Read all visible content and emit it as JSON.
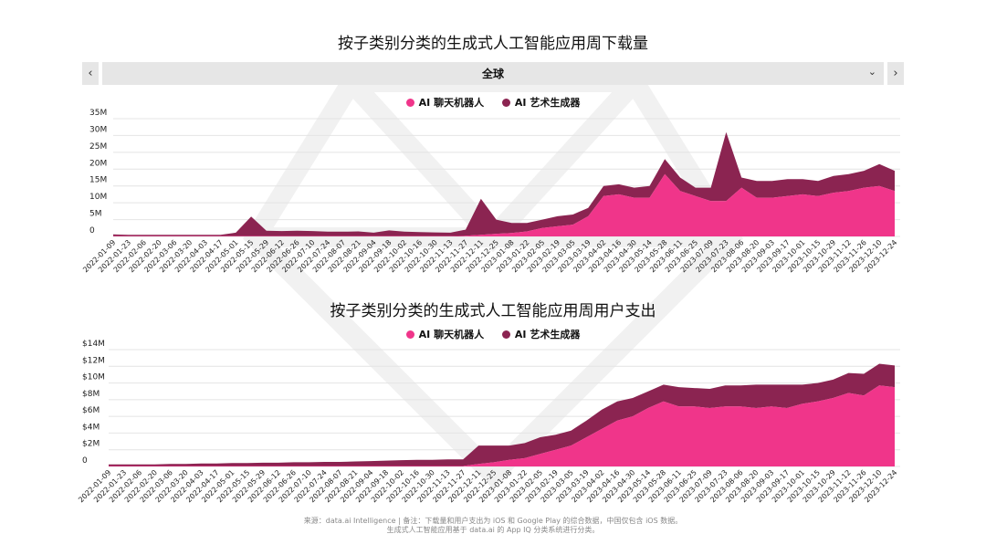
{
  "region": {
    "label": "全球",
    "prev_icon": "‹",
    "next_icon": "›",
    "dropdown_icon": "⌄"
  },
  "colors": {
    "chatbot": "#f0358a",
    "art": "#8b2451"
  },
  "source": {
    "line1": "来源：data.ai Intelligence | 备注：下载量和用户支出为 iOS 和 Google Play 的综合数据，中国仅包含 iOS 数据。",
    "line2": "生成式人工智能应用基于 data.ai 的 App IQ 分类系统进行分类。"
  },
  "chart_data": [
    {
      "type": "area",
      "title": "按子类别分类的生成式人工智能应用周下载量",
      "legend": [
        "AI 聊天机器人",
        "AI 艺术生成器"
      ],
      "y_ticks": [
        "0",
        "5M",
        "10M",
        "15M",
        "20M",
        "25M",
        "30M",
        "35M"
      ],
      "ylim": [
        0,
        35
      ],
      "x_labels": [
        "2022-01-09",
        "2022-01-23",
        "2022-02-06",
        "2022-02-20",
        "2022-03-06",
        "2022-03-20",
        "2022-04-03",
        "2022-04-17",
        "2022-05-01",
        "2022-05-15",
        "2022-05-29",
        "2022-06-12",
        "2022-06-26",
        "2022-07-10",
        "2022-07-24",
        "2022-08-07",
        "2022-08-21",
        "2022-09-04",
        "2022-09-18",
        "2022-10-02",
        "2022-10-16",
        "2022-10-30",
        "2022-11-13",
        "2022-11-27",
        "2022-12-11",
        "2022-12-25",
        "2023-01-08",
        "2023-01-22",
        "2023-02-05",
        "2023-02-19",
        "2023-03-05",
        "2023-03-19",
        "2023-04-02",
        "2023-04-16",
        "2023-04-30",
        "2023-05-14",
        "2023-05-28",
        "2023-06-11",
        "2023-06-25",
        "2023-07-09",
        "2023-07-23",
        "2023-08-06",
        "2023-08-20",
        "2023-09-03",
        "2023-09-17",
        "2023-10-01",
        "2023-10-15",
        "2023-10-29",
        "2023-11-12",
        "2023-11-26",
        "2023-12-10",
        "2023-12-24"
      ],
      "series": [
        {
          "name": "AI 聊天机器人",
          "values": [
            0.1,
            0.1,
            0.1,
            0.1,
            0.1,
            0.1,
            0.1,
            0.1,
            0.1,
            0.1,
            0.1,
            0.1,
            0.1,
            0.1,
            0.1,
            0.1,
            0.1,
            0.1,
            0.1,
            0.1,
            0.1,
            0.1,
            0.1,
            0.2,
            0.5,
            0.8,
            1.0,
            1.5,
            2.5,
            3.0,
            3.5,
            6.0,
            12.0,
            12.5,
            11.5,
            11.5,
            18.5,
            13.5,
            12.0,
            10.5,
            10.5,
            14.5,
            11.5,
            11.5,
            12.0,
            12.5,
            12.0,
            13.0,
            13.5,
            14.5,
            15.0,
            13.5
          ]
        },
        {
          "name": "AI 艺术生成器",
          "values": [
            0.5,
            0.4,
            0.4,
            0.4,
            0.4,
            0.4,
            0.4,
            0.4,
            1.0,
            5.8,
            1.6,
            1.5,
            1.6,
            1.5,
            1.3,
            1.3,
            1.4,
            1.0,
            1.7,
            1.3,
            1.2,
            1.1,
            1.0,
            1.8,
            10.7,
            4.2,
            3.0,
            2.5,
            2.5,
            3.0,
            3.0,
            2.5,
            3.0,
            3.0,
            3.0,
            3.5,
            4.5,
            4.0,
            2.5,
            4.0,
            20.5,
            3.0,
            5.0,
            5.0,
            5.0,
            4.5,
            4.5,
            5.0,
            5.0,
            5.0,
            6.5,
            6.0
          ]
        }
      ]
    },
    {
      "type": "area",
      "title": "按子类别分类的生成式人工智能应用周用户支出",
      "legend": [
        "AI 聊天机器人",
        "AI 艺术生成器"
      ],
      "y_ticks": [
        "0",
        "$2M",
        "$4M",
        "$6M",
        "$8M",
        "$10M",
        "$12M",
        "$14M"
      ],
      "ylim": [
        0,
        14
      ],
      "x_labels": [
        "2022-01-09",
        "2022-01-23",
        "2022-02-06",
        "2022-02-20",
        "2022-03-06",
        "2022-03-20",
        "2022-04-03",
        "2022-04-17",
        "2022-05-01",
        "2022-05-15",
        "2022-05-29",
        "2022-06-12",
        "2022-06-26",
        "2022-07-10",
        "2022-07-24",
        "2022-08-07",
        "2022-08-21",
        "2022-09-04",
        "2022-09-18",
        "2022-10-02",
        "2022-10-16",
        "2022-10-30",
        "2022-11-13",
        "2022-11-27",
        "2022-12-11",
        "2022-12-25",
        "2023-01-08",
        "2023-01-22",
        "2023-02-05",
        "2023-02-19",
        "2023-03-05",
        "2023-03-19",
        "2023-04-02",
        "2023-04-16",
        "2023-04-30",
        "2023-05-14",
        "2023-05-28",
        "2023-06-11",
        "2023-06-25",
        "2023-07-09",
        "2023-07-23",
        "2023-08-06",
        "2023-08-20",
        "2023-09-03",
        "2023-09-17",
        "2023-10-01",
        "2023-10-15",
        "2023-10-29",
        "2023-11-12",
        "2023-11-26",
        "2023-12-10",
        "2023-12-24"
      ],
      "series": [
        {
          "name": "AI 聊天机器人",
          "values": [
            0.05,
            0.05,
            0.05,
            0.05,
            0.05,
            0.05,
            0.05,
            0.05,
            0.05,
            0.05,
            0.05,
            0.05,
            0.05,
            0.05,
            0.05,
            0.05,
            0.05,
            0.05,
            0.05,
            0.05,
            0.05,
            0.05,
            0.05,
            0.05,
            0.3,
            0.5,
            0.8,
            1.0,
            1.5,
            2.0,
            2.5,
            3.5,
            4.5,
            5.5,
            6.0,
            7.0,
            7.8,
            7.2,
            7.2,
            7.0,
            7.2,
            7.2,
            7.0,
            7.2,
            7.0,
            7.5,
            7.8,
            8.2,
            8.8,
            8.5,
            9.7,
            9.5
          ]
        },
        {
          "name": "AI 艺术生成器",
          "values": [
            0.2,
            0.2,
            0.2,
            0.2,
            0.25,
            0.25,
            0.3,
            0.3,
            0.35,
            0.35,
            0.4,
            0.4,
            0.45,
            0.45,
            0.5,
            0.5,
            0.55,
            0.6,
            0.65,
            0.7,
            0.75,
            0.75,
            0.8,
            0.8,
            2.2,
            2.0,
            1.7,
            1.8,
            2.0,
            1.8,
            1.8,
            2.0,
            2.3,
            2.3,
            2.2,
            2.0,
            2.0,
            2.3,
            2.2,
            2.3,
            2.5,
            2.5,
            2.8,
            2.6,
            2.8,
            2.3,
            2.2,
            2.2,
            2.4,
            2.6,
            2.6,
            2.6
          ]
        }
      ]
    }
  ]
}
